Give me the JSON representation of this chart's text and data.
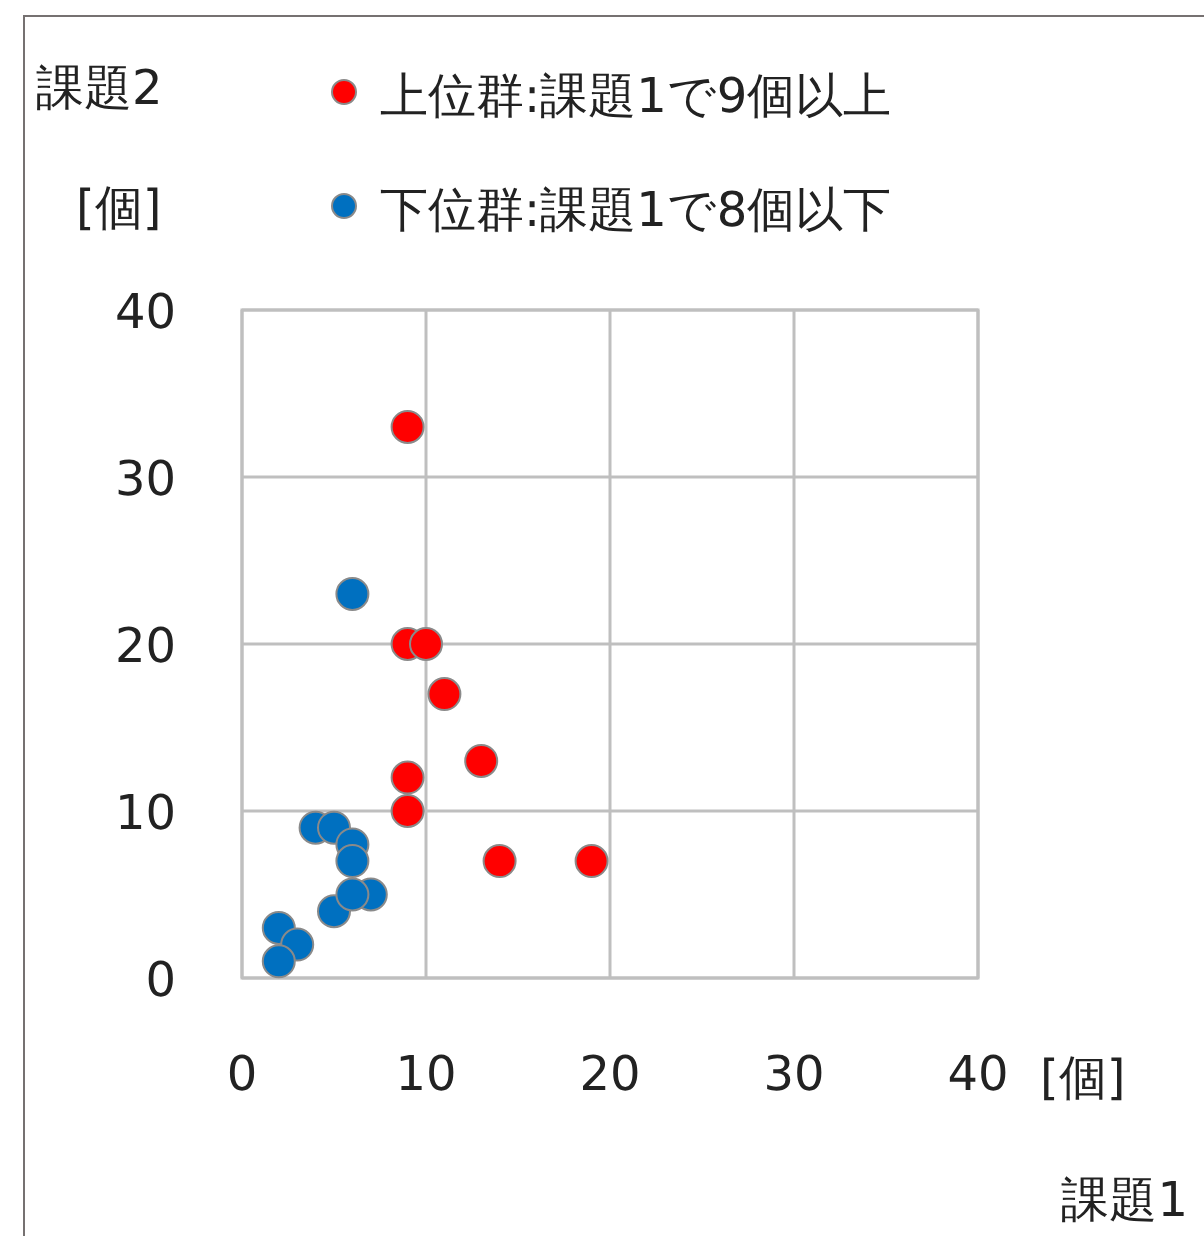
{
  "chart_data": {
    "type": "scatter",
    "xlabel": "課題1",
    "ylabel": "課題2",
    "annotations": [
      "[個]",
      "[個]"
    ],
    "xlim": [
      0,
      40
    ],
    "ylim": [
      0,
      40
    ],
    "xticks": [
      0,
      10,
      20,
      30,
      40
    ],
    "yticks": [
      0,
      10,
      20,
      30,
      40
    ],
    "grid": true,
    "legend": "top",
    "marker": "circle",
    "series": [
      {
        "name": "上位群:課題1で9個以上",
        "color": "#ff0000",
        "x": [
          9,
          9,
          10,
          11,
          13,
          9,
          9,
          14,
          19
        ],
        "values": [
          33,
          20,
          20,
          17,
          13,
          12,
          10,
          7,
          7
        ]
      },
      {
        "name": "下位群:課題1で8個以下",
        "color": "#0070c0",
        "x": [
          6,
          4,
          5,
          6,
          6,
          7,
          5,
          2,
          3,
          2,
          6
        ],
        "values": [
          23,
          9,
          9,
          8,
          7,
          5,
          4,
          3,
          2,
          1,
          5
        ]
      }
    ]
  }
}
